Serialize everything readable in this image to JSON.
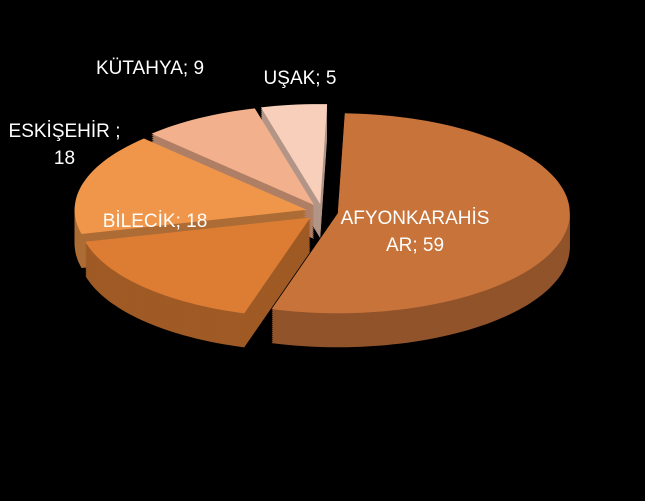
{
  "chart_data": {
    "type": "pie3d",
    "categories": [
      "AFYONKARAHİSAR",
      "BİLECİK",
      "ESKİŞEHİR",
      "KÜTAHYA",
      "UŞAK"
    ],
    "values": [
      59,
      18,
      18,
      9,
      5
    ],
    "colors": [
      "#c8733a",
      "#dd7d34",
      "#f0964a",
      "#f2b08c",
      "#f8cfbb"
    ],
    "label_separator": ";"
  }
}
